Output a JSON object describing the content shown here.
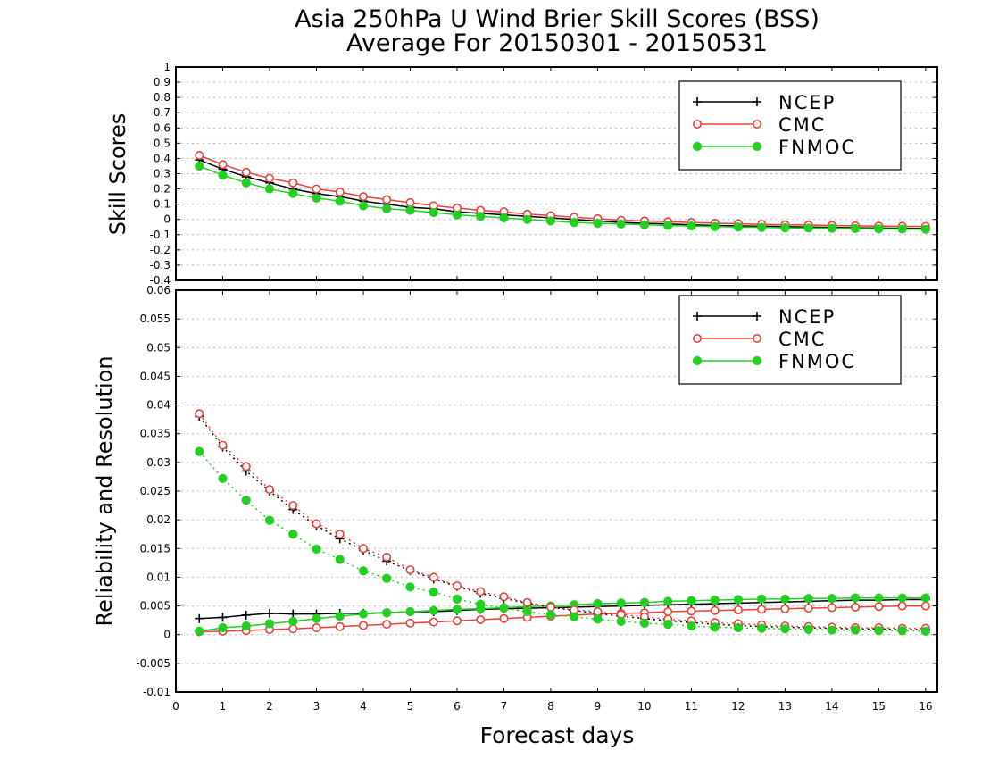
{
  "chart_data": [
    {
      "type": "line",
      "title": "Asia 250hPa U Wind Brier Skill Scores (BSS)",
      "subtitle": "Average For 20150301 - 20150531",
      "xlabel": "Forecast days",
      "ylabel": "Skill Scores",
      "xlim": [
        0,
        16.25
      ],
      "ylim": [
        -0.4,
        1
      ],
      "x_ticks": [
        "0",
        "1",
        "2",
        "3",
        "4",
        "5",
        "6",
        "7",
        "8",
        "9",
        "10",
        "11",
        "12",
        "13",
        "14",
        "15",
        "16"
      ],
      "y_ticks": [
        "-0.4",
        "-0.3",
        "-0.2",
        "-0.1",
        "0",
        "0.1",
        "0.2",
        "0.3",
        "0.4",
        "0.5",
        "0.6",
        "0.7",
        "0.8",
        "0.9",
        "1"
      ],
      "grid": true,
      "legend_position": "top-right",
      "x": [
        0.5,
        1,
        1.5,
        2,
        2.5,
        3,
        3.5,
        4,
        4.5,
        5,
        5.5,
        6,
        6.5,
        7,
        7.5,
        8,
        8.5,
        9,
        9.5,
        10,
        10.5,
        11,
        11.5,
        12,
        12.5,
        13,
        13.5,
        14,
        14.5,
        15,
        15.5,
        16
      ],
      "series": [
        {
          "name": "NCEP",
          "color": "#000000",
          "marker": "plus",
          "style": "solid",
          "values": [
            0.39,
            0.33,
            0.28,
            0.24,
            0.2,
            0.17,
            0.15,
            0.12,
            0.1,
            0.08,
            0.07,
            0.05,
            0.04,
            0.03,
            0.02,
            0.01,
            0,
            -0.01,
            -0.02,
            -0.025,
            -0.03,
            -0.035,
            -0.04,
            -0.042,
            -0.045,
            -0.047,
            -0.05,
            -0.052,
            -0.055,
            -0.057,
            -0.058,
            -0.06
          ]
        },
        {
          "name": "CMC",
          "color": "#e8403b",
          "marker": "open-circle",
          "style": "solid",
          "values": [
            0.42,
            0.36,
            0.31,
            0.27,
            0.24,
            0.2,
            0.18,
            0.15,
            0.13,
            0.11,
            0.09,
            0.075,
            0.06,
            0.05,
            0.035,
            0.025,
            0.015,
            0.005,
            -0.005,
            -0.01,
            -0.015,
            -0.02,
            -0.025,
            -0.028,
            -0.032,
            -0.035,
            -0.037,
            -0.04,
            -0.042,
            -0.044,
            -0.045,
            -0.046
          ]
        },
        {
          "name": "FNMOC",
          "color": "#22d022",
          "marker": "filled-circle",
          "style": "solid",
          "values": [
            0.35,
            0.29,
            0.24,
            0.2,
            0.17,
            0.14,
            0.12,
            0.09,
            0.07,
            0.06,
            0.045,
            0.03,
            0.02,
            0.01,
            0,
            -0.01,
            -0.02,
            -0.025,
            -0.03,
            -0.035,
            -0.04,
            -0.043,
            -0.047,
            -0.05,
            -0.052,
            -0.055,
            -0.057,
            -0.058,
            -0.06,
            -0.062,
            -0.063,
            -0.065
          ]
        }
      ]
    },
    {
      "type": "line",
      "xlabel": "Forecast days",
      "ylabel": "Reliability and Resolution",
      "xlim": [
        0,
        16.25
      ],
      "ylim": [
        -0.01,
        0.06
      ],
      "x_ticks": [
        "0",
        "1",
        "2",
        "3",
        "4",
        "5",
        "6",
        "7",
        "8",
        "9",
        "10",
        "11",
        "12",
        "13",
        "14",
        "15",
        "16"
      ],
      "y_ticks": [
        "-0.01",
        "-0.005",
        "0",
        "0.005",
        "0.01",
        "0.015",
        "0.02",
        "0.025",
        "0.03",
        "0.035",
        "0.04",
        "0.045",
        "0.05",
        "0.055",
        "0.06"
      ],
      "grid": true,
      "legend_position": "top-right",
      "x": [
        0.5,
        1,
        1.5,
        2,
        2.5,
        3,
        3.5,
        4,
        4.5,
        5,
        5.5,
        6,
        6.5,
        7,
        7.5,
        8,
        8.5,
        9,
        9.5,
        10,
        10.5,
        11,
        11.5,
        12,
        12.5,
        13,
        13.5,
        14,
        14.5,
        15,
        15.5,
        16
      ],
      "series": [
        {
          "name": "NCEP",
          "color": "#000000",
          "marker": "plus",
          "style": "solid",
          "values": [
            0.0028,
            0.003,
            0.0034,
            0.0037,
            0.0036,
            0.0036,
            0.0037,
            0.0037,
            0.0038,
            0.004,
            0.004,
            0.0042,
            0.0044,
            0.0045,
            0.0046,
            0.0047,
            0.0048,
            0.0049,
            0.005,
            0.0051,
            0.0052,
            0.0053,
            0.0054,
            0.0055,
            0.0056,
            0.0057,
            0.0058,
            0.0059,
            0.006,
            0.006,
            0.0061,
            0.0061
          ]
        },
        {
          "name": "CMC",
          "color": "#e8403b",
          "marker": "open-circle",
          "style": "solid",
          "values": [
            0.0005,
            0.0006,
            0.0007,
            0.0009,
            0.001,
            0.0012,
            0.0014,
            0.0016,
            0.0018,
            0.002,
            0.0022,
            0.0024,
            0.0026,
            0.0028,
            0.003,
            0.0032,
            0.0034,
            0.0036,
            0.0037,
            0.0038,
            0.004,
            0.0041,
            0.0042,
            0.0043,
            0.0044,
            0.0045,
            0.0046,
            0.0047,
            0.0048,
            0.0049,
            0.005,
            0.005
          ]
        },
        {
          "name": "FNMOC",
          "color": "#22d022",
          "marker": "filled-circle",
          "style": "solid",
          "values": [
            0.0006,
            0.0012,
            0.0015,
            0.0019,
            0.0023,
            0.0028,
            0.0032,
            0.0036,
            0.0038,
            0.004,
            0.0042,
            0.0044,
            0.0045,
            0.0047,
            0.0049,
            0.005,
            0.0052,
            0.0054,
            0.0055,
            0.0056,
            0.0058,
            0.0059,
            0.006,
            0.0061,
            0.0062,
            0.0062,
            0.0063,
            0.0063,
            0.0064,
            0.0064,
            0.0064,
            0.0064
          ]
        },
        {
          "name": "",
          "color": "#000000",
          "marker": "plus",
          "style": "dotted",
          "values": [
            0.038,
            0.0327,
            0.0285,
            0.025,
            0.0218,
            0.019,
            0.0167,
            0.0147,
            0.0128,
            0.0112,
            0.0097,
            0.0084,
            0.0072,
            0.0063,
            0.0055,
            0.0048,
            0.0042,
            0.0037,
            0.0032,
            0.0028,
            0.0024,
            0.0021,
            0.0018,
            0.0016,
            0.0014,
            0.0013,
            0.0012,
            0.0011,
            0.001,
            0.001,
            0.0009,
            0.0009
          ]
        },
        {
          "name": "",
          "color": "#e8403b",
          "marker": "open-circle",
          "style": "dotted",
          "values": [
            0.0385,
            0.033,
            0.0293,
            0.0253,
            0.0225,
            0.0193,
            0.0175,
            0.015,
            0.0135,
            0.0113,
            0.01,
            0.0085,
            0.0075,
            0.0066,
            0.0056,
            0.0048,
            0.0043,
            0.004,
            0.0035,
            0.0031,
            0.0027,
            0.0024,
            0.0021,
            0.0019,
            0.0017,
            0.0015,
            0.0014,
            0.0013,
            0.0012,
            0.0012,
            0.0011,
            0.0011
          ]
        },
        {
          "name": "",
          "color": "#22d022",
          "marker": "filled-circle",
          "style": "dotted",
          "values": [
            0.0319,
            0.0272,
            0.0234,
            0.0199,
            0.0175,
            0.0149,
            0.0131,
            0.0111,
            0.0098,
            0.0083,
            0.0074,
            0.0062,
            0.0053,
            0.0046,
            0.004,
            0.0035,
            0.0031,
            0.0027,
            0.0023,
            0.002,
            0.0018,
            0.0015,
            0.0013,
            0.0012,
            0.0011,
            0.001,
            0.0009,
            0.0008,
            0.0008,
            0.0007,
            0.0007,
            0.0006
          ]
        }
      ]
    }
  ]
}
